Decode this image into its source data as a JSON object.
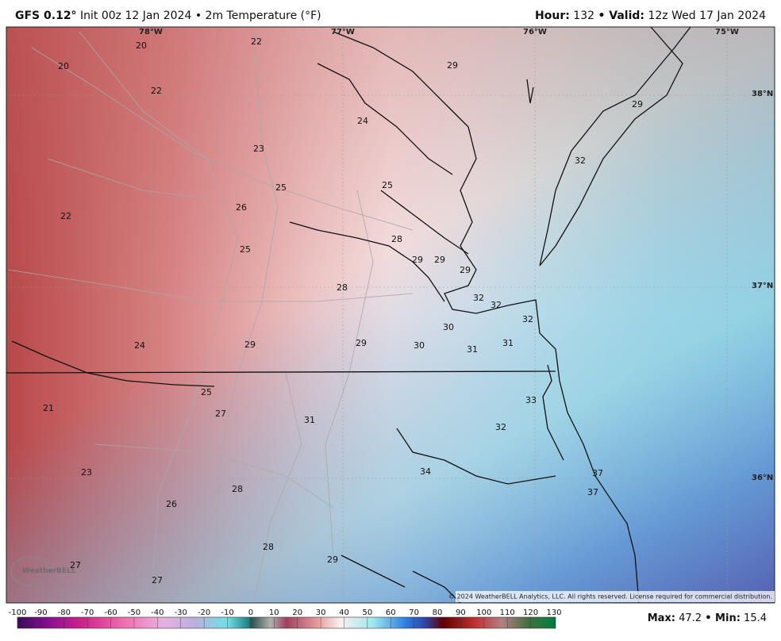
{
  "header": {
    "model": "GFS 0.12°",
    "info": "Init 00z 12 Jan 2024 • 2m Temperature (°F)",
    "hour_label": "Hour:",
    "hour": "132",
    "valid_label": "• Valid:",
    "valid": "12z Wed 17 Jan 2024"
  },
  "map": {
    "lon_labels": [
      "78°W",
      "77°W",
      "76°W",
      "75°W"
    ],
    "lat_labels": [
      "38°N",
      "37°N",
      "36°N"
    ],
    "station_values": [
      20,
      22,
      29,
      20,
      22,
      29,
      24,
      23,
      32,
      25,
      25,
      26,
      22,
      28,
      25,
      29,
      29,
      29,
      28,
      32,
      32,
      32,
      30,
      24,
      29,
      29,
      30,
      31,
      31,
      25,
      33,
      21,
      27,
      31,
      32,
      34,
      23,
      37,
      28,
      37,
      26,
      28,
      29,
      27,
      27
    ],
    "copyright": "© 2024 WeatherBELL Analytics, LLC. All rights reserved. License required for commercial distribution.",
    "watermark": "WeatherBELL"
  },
  "colorbar": {
    "ticks": [
      -100,
      -90,
      -80,
      -70,
      -60,
      -50,
      -40,
      -30,
      -20,
      -10,
      0,
      10,
      20,
      30,
      40,
      50,
      60,
      70,
      80,
      90,
      100,
      110,
      120,
      130
    ]
  },
  "footer": {
    "max_label": "Max:",
    "max": "47.2",
    "min_label": "• Min:",
    "min": "15.4"
  }
}
